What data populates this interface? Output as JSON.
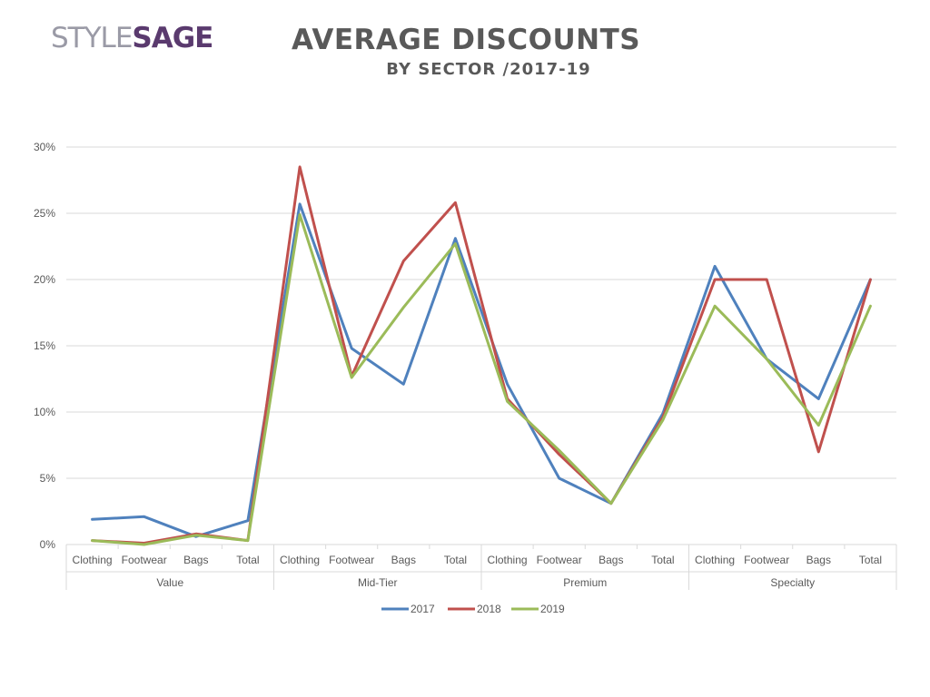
{
  "brand": {
    "part1": "STYLE",
    "part2": "SAGE"
  },
  "header": {
    "title": "AVERAGE DISCOUNTS",
    "subtitle": "BY SECTOR /2017-19"
  },
  "colors": {
    "2017": "#4f81bd",
    "2018": "#c0504d",
    "2019": "#9bbb59",
    "grid": "#d9d9d9",
    "text": "#595959"
  },
  "chart_data": {
    "type": "line",
    "title": "AVERAGE DISCOUNTS",
    "subtitle": "BY SECTOR /2017-19",
    "ylim": [
      0,
      30
    ],
    "y_ticks": [
      "0%",
      "5%",
      "10%",
      "15%",
      "20%",
      "25%",
      "30%"
    ],
    "y_tick_values": [
      0,
      5,
      10,
      15,
      20,
      25,
      30
    ],
    "groups": [
      "Value",
      "Mid-Tier",
      "Premium",
      "Specialty"
    ],
    "categories": [
      "Clothing",
      "Footwear",
      "Bags",
      "Total",
      "Clothing",
      "Footwear",
      "Bags",
      "Total",
      "Clothing",
      "Footwear",
      "Bags",
      "Total",
      "Clothing",
      "Footwear",
      "Bags",
      "Total"
    ],
    "series": [
      {
        "name": "2017",
        "values": [
          1.9,
          2.1,
          0.6,
          1.8,
          25.7,
          14.8,
          12.1,
          23.1,
          12.1,
          5.0,
          3.1,
          9.9,
          21.0,
          14.0,
          11.0,
          20.0
        ]
      },
      {
        "name": "2018",
        "values": [
          0.3,
          0.1,
          0.8,
          0.3,
          28.5,
          12.7,
          21.4,
          25.8,
          11.0,
          6.8,
          3.1,
          9.6,
          20.0,
          20.0,
          7.0,
          20.0
        ]
      },
      {
        "name": "2019",
        "values": [
          0.3,
          0.0,
          0.7,
          0.3,
          24.9,
          12.6,
          17.9,
          22.7,
          10.8,
          7.1,
          3.1,
          9.4,
          18.0,
          14.0,
          9.0,
          18.0
        ]
      }
    ],
    "grid": true,
    "legend": "bottom-center"
  }
}
